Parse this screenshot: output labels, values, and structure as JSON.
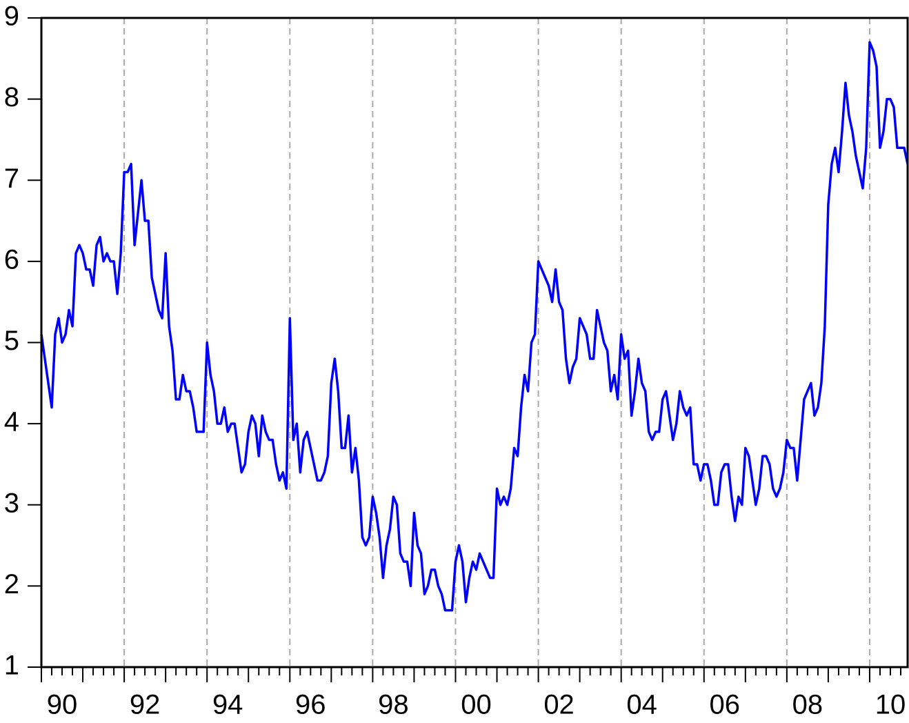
{
  "chart_data": {
    "type": "line",
    "color": "#0000ff",
    "grid": true,
    "ylim": [
      1,
      9
    ],
    "yticks": [
      1,
      2,
      3,
      4,
      5,
      6,
      7,
      8,
      9
    ],
    "categories": [
      "90",
      null,
      null,
      null,
      null,
      null,
      null,
      null,
      null,
      null,
      null,
      null,
      null,
      null,
      null,
      null,
      null,
      null,
      null,
      null,
      null,
      null,
      null,
      null,
      "92",
      null,
      null,
      null,
      null,
      null,
      null,
      null,
      null,
      null,
      null,
      null,
      null,
      null,
      null,
      null,
      null,
      null,
      null,
      null,
      null,
      null,
      null,
      null,
      "94",
      null,
      null,
      null,
      null,
      null,
      null,
      null,
      null,
      null,
      null,
      null,
      null,
      null,
      null,
      null,
      null,
      null,
      null,
      null,
      null,
      null,
      null,
      null,
      "96",
      null,
      null,
      null,
      null,
      null,
      null,
      null,
      null,
      null,
      null,
      null,
      null,
      null,
      null,
      null,
      null,
      null,
      null,
      null,
      null,
      null,
      null,
      null,
      "98",
      null,
      null,
      null,
      null,
      null,
      null,
      null,
      null,
      null,
      null,
      null,
      null,
      null,
      null,
      null,
      null,
      null,
      null,
      null,
      null,
      null,
      null,
      null,
      "00",
      null,
      null,
      null,
      null,
      null,
      null,
      null,
      null,
      null,
      null,
      null,
      null,
      null,
      null,
      null,
      null,
      null,
      null,
      null,
      null,
      null,
      null,
      null,
      "02",
      null,
      null,
      null,
      null,
      null,
      null,
      null,
      null,
      null,
      null,
      null,
      null,
      null,
      null,
      null,
      null,
      null,
      null,
      null,
      null,
      null,
      null,
      null,
      "04",
      null,
      null,
      null,
      null,
      null,
      null,
      null,
      null,
      null,
      null,
      null,
      null,
      null,
      null,
      null,
      null,
      null,
      null,
      null,
      null,
      null,
      null,
      null,
      "06",
      null,
      null,
      null,
      null,
      null,
      null,
      null,
      null,
      null,
      null,
      null,
      null,
      null,
      null,
      null,
      null,
      null,
      null,
      null,
      null,
      null,
      null,
      null,
      "08",
      null,
      null,
      null,
      null,
      null,
      null,
      null,
      null,
      null,
      null,
      null,
      null,
      null,
      null,
      null,
      null,
      null,
      null,
      null,
      null,
      null,
      null,
      null,
      "10",
      null,
      null,
      null,
      null,
      null,
      null,
      null,
      null,
      null,
      null,
      null
    ],
    "values": [
      5.1,
      4.8,
      4.5,
      4.2,
      5.1,
      5.3,
      5.0,
      5.1,
      5.4,
      5.2,
      6.1,
      6.2,
      6.1,
      5.9,
      5.9,
      5.7,
      6.2,
      6.3,
      6.0,
      6.1,
      6.0,
      6.0,
      5.6,
      6.1,
      7.1,
      7.1,
      7.2,
      6.2,
      6.6,
      7.0,
      6.5,
      6.5,
      5.8,
      5.6,
      5.4,
      5.3,
      6.1,
      5.2,
      4.9,
      4.3,
      4.3,
      4.6,
      4.4,
      4.4,
      4.2,
      3.9,
      3.9,
      3.9,
      5.0,
      4.6,
      4.4,
      4.0,
      4.0,
      4.2,
      3.9,
      4.0,
      4.0,
      3.7,
      3.4,
      3.5,
      3.9,
      4.1,
      4.0,
      3.6,
      4.1,
      3.9,
      3.8,
      3.8,
      3.5,
      3.3,
      3.4,
      3.2,
      5.3,
      3.8,
      4.0,
      3.4,
      3.8,
      3.9,
      3.7,
      3.5,
      3.3,
      3.3,
      3.4,
      3.6,
      4.5,
      4.8,
      4.4,
      3.7,
      3.7,
      4.1,
      3.4,
      3.7,
      3.3,
      2.6,
      2.5,
      2.6,
      3.1,
      2.9,
      2.6,
      2.1,
      2.5,
      2.7,
      3.1,
      3.0,
      2.4,
      2.3,
      2.3,
      2.0,
      2.9,
      2.5,
      2.4,
      1.9,
      2.0,
      2.2,
      2.2,
      2.0,
      1.9,
      1.7,
      1.7,
      1.7,
      2.3,
      2.5,
      2.3,
      1.8,
      2.1,
      2.3,
      2.2,
      2.4,
      2.3,
      2.2,
      2.1,
      2.1,
      3.2,
      3.0,
      3.1,
      3.0,
      3.2,
      3.7,
      3.6,
      4.2,
      4.6,
      4.4,
      5.0,
      5.1,
      6.0,
      5.9,
      5.8,
      5.7,
      5.5,
      5.9,
      5.5,
      5.4,
      4.8,
      4.5,
      4.7,
      4.8,
      5.3,
      5.2,
      5.1,
      4.8,
      4.8,
      5.4,
      5.2,
      5.0,
      4.9,
      4.4,
      4.6,
      4.3,
      5.1,
      4.8,
      4.9,
      4.1,
      4.4,
      4.8,
      4.5,
      4.4,
      3.9,
      3.8,
      3.9,
      3.9,
      4.3,
      4.4,
      4.1,
      3.8,
      4.0,
      4.4,
      4.2,
      4.1,
      4.2,
      3.5,
      3.5,
      3.3,
      3.5,
      3.5,
      3.3,
      3.0,
      3.0,
      3.4,
      3.5,
      3.5,
      3.1,
      2.8,
      3.1,
      3.0,
      3.7,
      3.6,
      3.3,
      3.0,
      3.2,
      3.6,
      3.6,
      3.5,
      3.2,
      3.1,
      3.2,
      3.4,
      3.8,
      3.7,
      3.7,
      3.3,
      3.8,
      4.3,
      4.4,
      4.5,
      4.1,
      4.2,
      4.5,
      5.2,
      6.7,
      7.2,
      7.4,
      7.1,
      7.6,
      8.2,
      7.8,
      7.6,
      7.3,
      7.1,
      6.9,
      7.4,
      8.7,
      8.6,
      8.4,
      7.4,
      7.6,
      8.0,
      8.0,
      7.9,
      7.4,
      7.4,
      7.4,
      7.2
    ]
  }
}
